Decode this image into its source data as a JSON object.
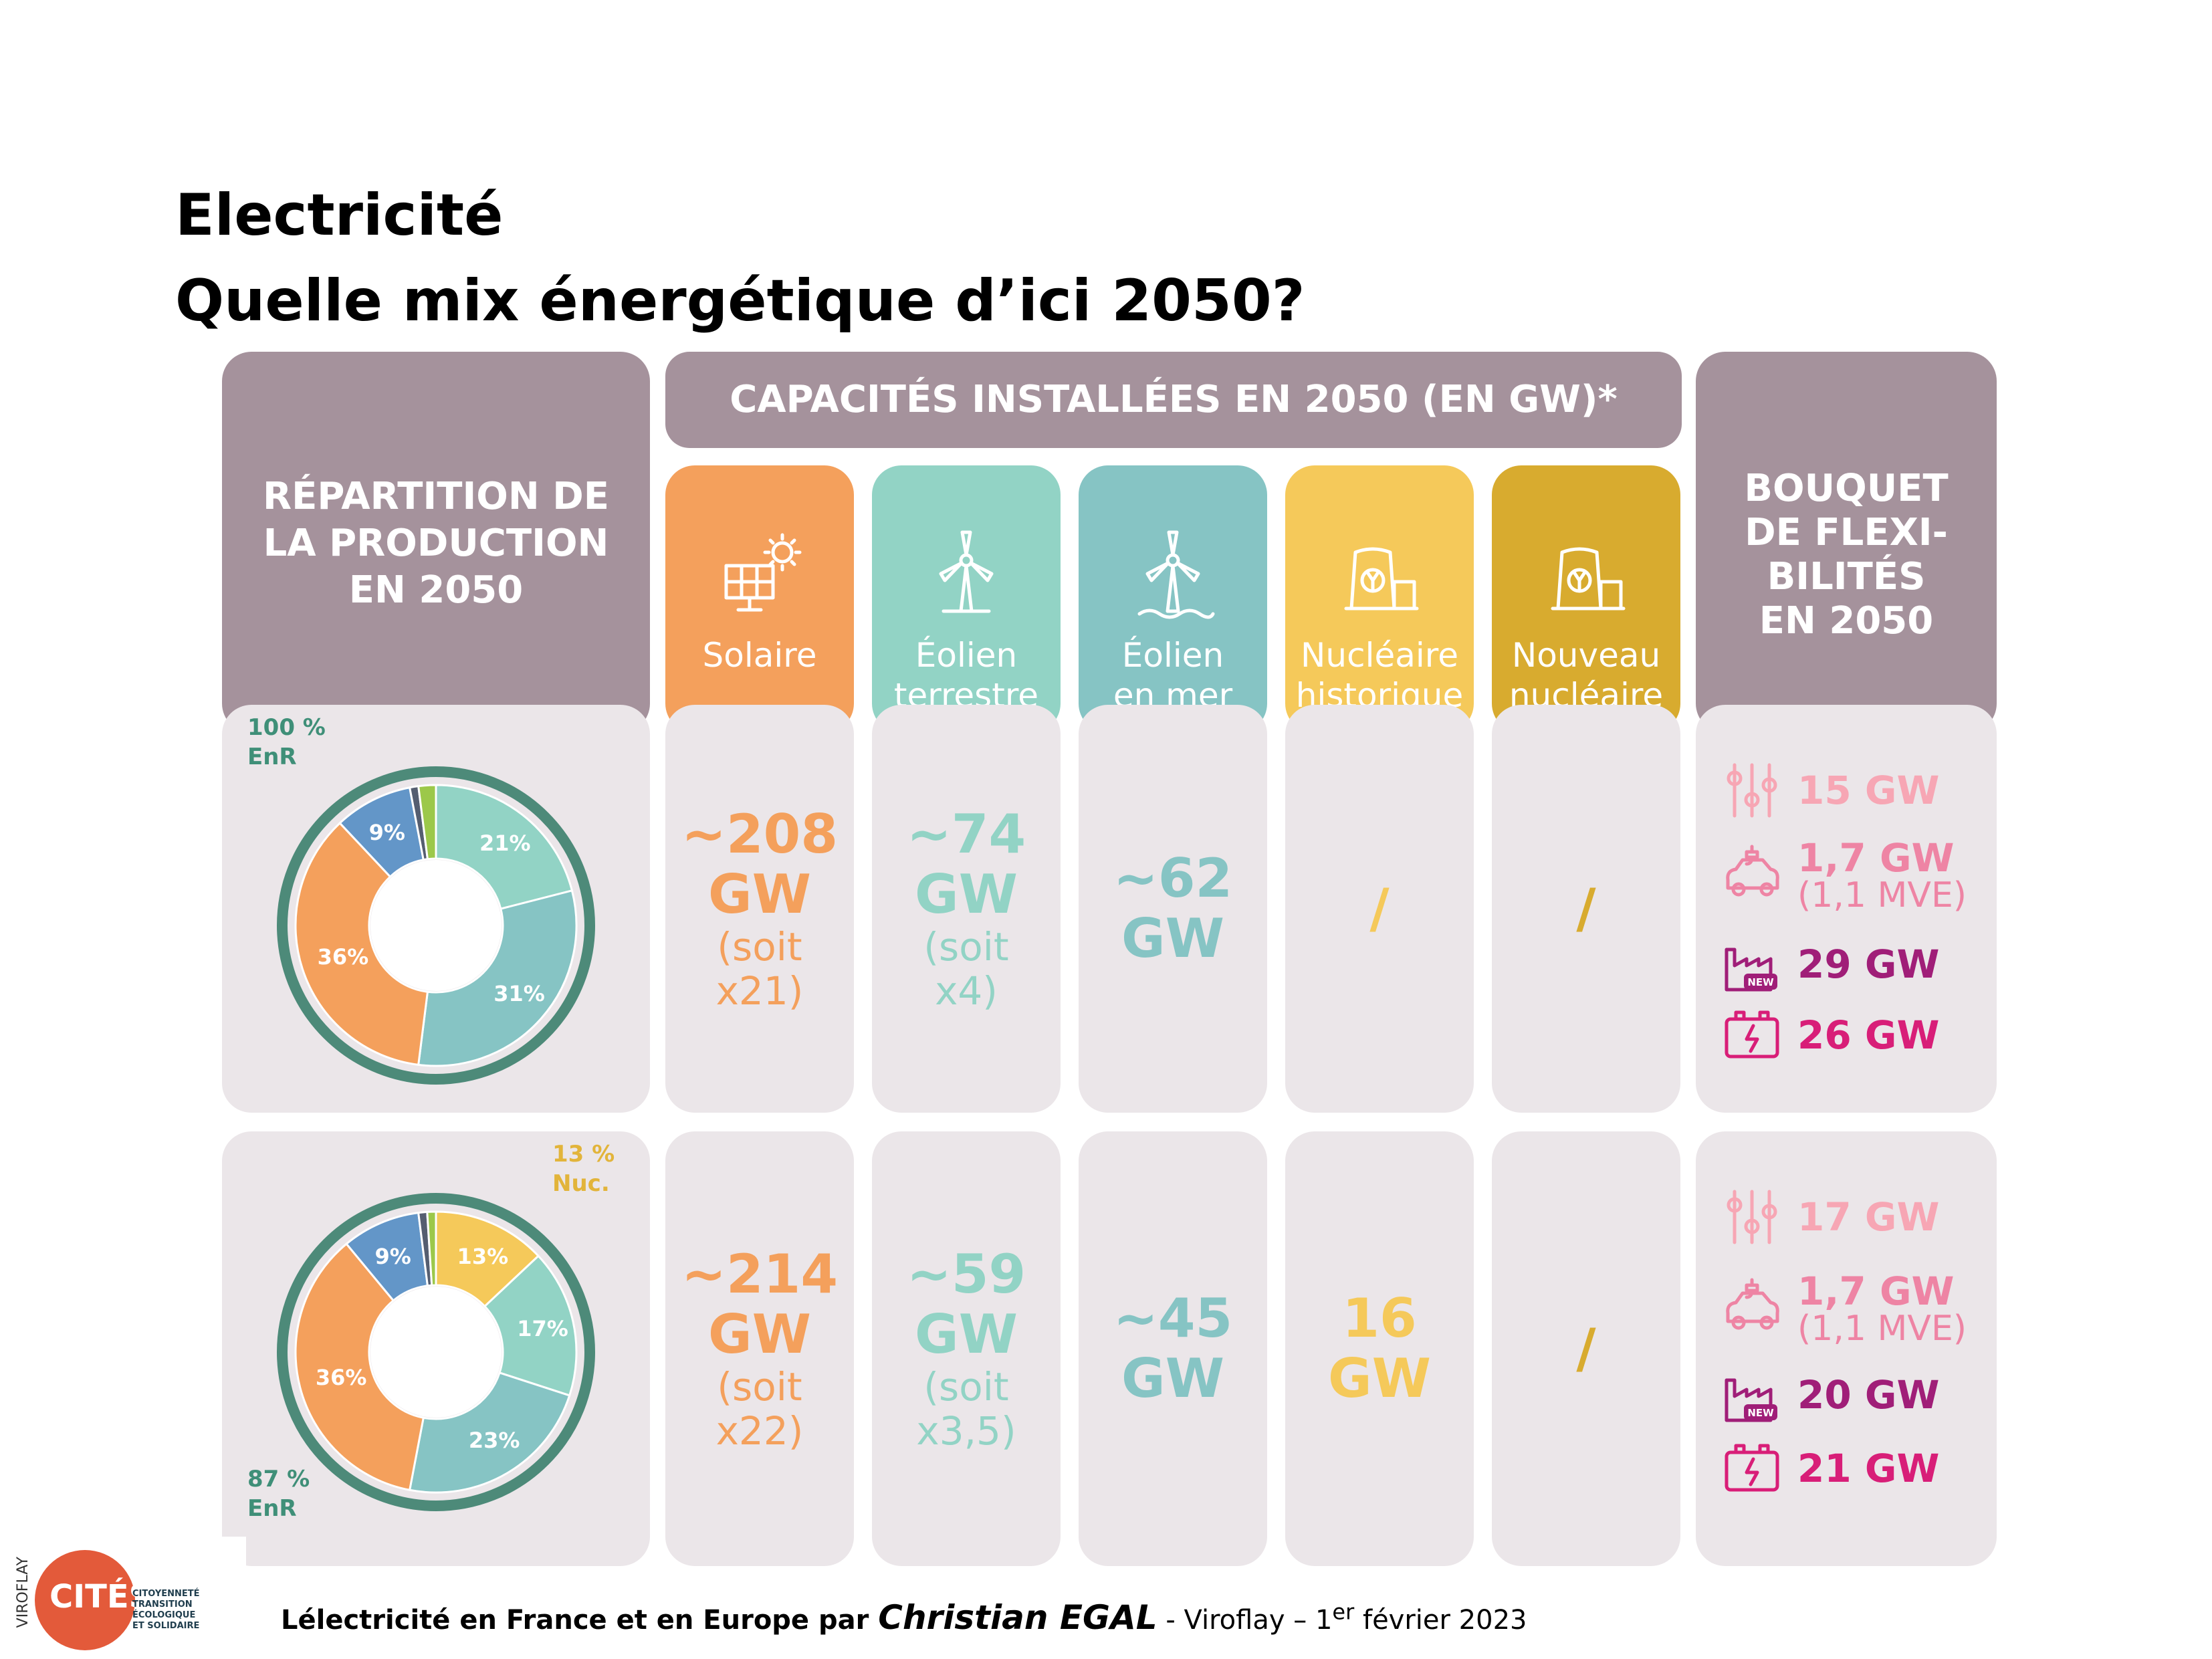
{
  "slide": {
    "title_line1": "Electricité",
    "title_line2": "Quelle mix énergétique d’ici 2050?"
  },
  "headers": {
    "left": [
      "RÉPARTITION DE",
      "LA PRODUCTION",
      "EN 2050"
    ],
    "capacities": "CAPACITÉS INSTALLÉES EN 2050 (EN GW)*",
    "right": [
      "BOUQUET",
      "DE FLEXI-",
      "BILITÉS",
      "EN 2050"
    ]
  },
  "categories": [
    {
      "line1": "Solaire",
      "line2": "",
      "color": "#f4a05c",
      "icon": "solar-panel-icon"
    },
    {
      "line1": "Éolien",
      "line2": "terrestre",
      "color": "#92d3c5",
      "icon": "wind-turbine-icon"
    },
    {
      "line1": "Éolien",
      "line2": "en mer",
      "color": "#86c4c4",
      "icon": "offshore-wind-icon"
    },
    {
      "line1": "Nucléaire",
      "line2": "historique",
      "color": "#f5c95a",
      "icon": "nuclear-plant-icon"
    },
    {
      "line1": "Nouveau",
      "line2": "nucléaire",
      "color": "#d8ab2f",
      "icon": "new-nuclear-icon"
    }
  ],
  "rows": [
    {
      "donut": {
        "annotation": [
          "100 %",
          "EnR"
        ],
        "annotation_color": "#3f8f78",
        "segments": [
          {
            "label": "21%",
            "value": 21,
            "color": "#92d3c5"
          },
          {
            "label": "31%",
            "value": 31,
            "color": "#86c4c4"
          },
          {
            "label": "36%",
            "value": 36,
            "color": "#f4a05c"
          },
          {
            "label": "9%",
            "value": 9,
            "color": "#6396c8"
          },
          {
            "label": "",
            "value": 1,
            "color": "#555e70"
          },
          {
            "label": "",
            "value": 2,
            "color": "#9cc84a"
          }
        ]
      },
      "values": [
        {
          "main1": "~208",
          "main2": "GW",
          "sub1": "(soit",
          "sub2": "x21)"
        },
        {
          "main1": "~74",
          "main2": "GW",
          "sub1": "(soit",
          "sub2": "x4)"
        },
        {
          "main1": "~62",
          "main2": "GW",
          "sub1": "",
          "sub2": ""
        },
        {
          "main1": "/",
          "main2": "",
          "sub1": "",
          "sub2": ""
        },
        {
          "main1": "/",
          "main2": "",
          "sub1": "",
          "sub2": ""
        }
      ],
      "flex": [
        {
          "text": "15 GW",
          "sub": "",
          "color": "#f7a6b4",
          "icon": "sliders-icon"
        },
        {
          "text": "1,7 GW",
          "sub": "(1,1 MVE)",
          "color": "#ee84a4",
          "icon": "ev-charging-icon"
        },
        {
          "text": "29 GW",
          "sub": "",
          "color": "#a01e78",
          "icon": "factory-icon"
        },
        {
          "text": "26 GW",
          "sub": "",
          "color": "#d81e78",
          "icon": "battery-icon"
        }
      ]
    },
    {
      "donut": {
        "annotation_top": [
          "13 %",
          "Nuc."
        ],
        "annotation": [
          "87 %",
          "EnR"
        ],
        "annotation_color": "#3f8f78",
        "annotation_top_color": "#e2b43a",
        "segments": [
          {
            "label": "13%",
            "value": 13,
            "color": "#f5c95a"
          },
          {
            "label": "17%",
            "value": 17,
            "color": "#92d3c5"
          },
          {
            "label": "23%",
            "value": 23,
            "color": "#86c4c4"
          },
          {
            "label": "36%",
            "value": 36,
            "color": "#f4a05c"
          },
          {
            "label": "9%",
            "value": 9,
            "color": "#6396c8"
          },
          {
            "label": "",
            "value": 1,
            "color": "#555e70"
          },
          {
            "label": "",
            "value": 1,
            "color": "#9cc84a"
          }
        ]
      },
      "values": [
        {
          "main1": "~214",
          "main2": "GW",
          "sub1": "(soit",
          "sub2": "x22)"
        },
        {
          "main1": "~59",
          "main2": "GW",
          "sub1": "(soit",
          "sub2": "x3,5)"
        },
        {
          "main1": "~45",
          "main2": "GW",
          "sub1": "",
          "sub2": ""
        },
        {
          "main1": "16",
          "main2": "GW",
          "sub1": "",
          "sub2": ""
        },
        {
          "main1": "/",
          "main2": "",
          "sub1": "",
          "sub2": ""
        }
      ],
      "flex": [
        {
          "text": "17 GW",
          "sub": "",
          "color": "#f7a6b4",
          "icon": "sliders-icon"
        },
        {
          "text": "1,7 GW",
          "sub": "(1,1 MVE)",
          "color": "#ee84a4",
          "icon": "ev-charging-icon"
        },
        {
          "text": "20 GW",
          "sub": "",
          "color": "#a01e78",
          "icon": "factory-icon"
        },
        {
          "text": "21 GW",
          "sub": "",
          "color": "#d81e78",
          "icon": "battery-icon"
        }
      ]
    }
  ],
  "value_colors": [
    "#f4a05c",
    "#92d3c5",
    "#86c4c4",
    "#f5c95a",
    "#d8ab2f"
  ],
  "footer": {
    "prefix": "Lélectricité en France et en Europe par ",
    "author": "Christian EGAL",
    "suffix": " - Viroflay – 1",
    "sup": "er",
    "date": " février 2023"
  },
  "logo": {
    "vertical": "VIROFLAY",
    "name": "CITÉS",
    "tagline": [
      "CITOYENNETÉ",
      "TRANSITION ÉCOLOGIQUE",
      "ET SOLIDAIRE"
    ]
  }
}
